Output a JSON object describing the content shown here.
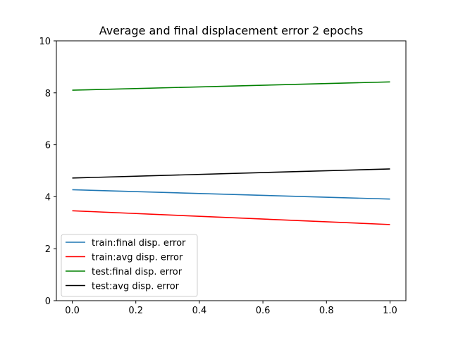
{
  "chart_data": {
    "type": "line",
    "title": "Average and final displacement error 2 epochs",
    "xlabel": "",
    "ylabel": "",
    "xlim": [
      -0.05,
      1.05
    ],
    "ylim": [
      0,
      10
    ],
    "xticks": [
      "0.0",
      "0.2",
      "0.4",
      "0.6",
      "0.8",
      "1.0"
    ],
    "yticks": [
      "0",
      "2",
      "4",
      "6",
      "8",
      "10"
    ],
    "grid": false,
    "legend_position": "lower-left",
    "x": [
      0.0,
      1.0
    ],
    "series": [
      {
        "name": "train:final disp. error",
        "color": "#1f77b4",
        "values": [
          4.27,
          3.91
        ]
      },
      {
        "name": "train:avg disp. error",
        "color": "#ff0000",
        "values": [
          3.46,
          2.93
        ]
      },
      {
        "name": "test:final disp. error",
        "color": "#008000",
        "values": [
          8.1,
          8.42
        ]
      },
      {
        "name": "test:avg disp. error",
        "color": "#000000",
        "values": [
          4.72,
          5.07
        ]
      }
    ]
  }
}
